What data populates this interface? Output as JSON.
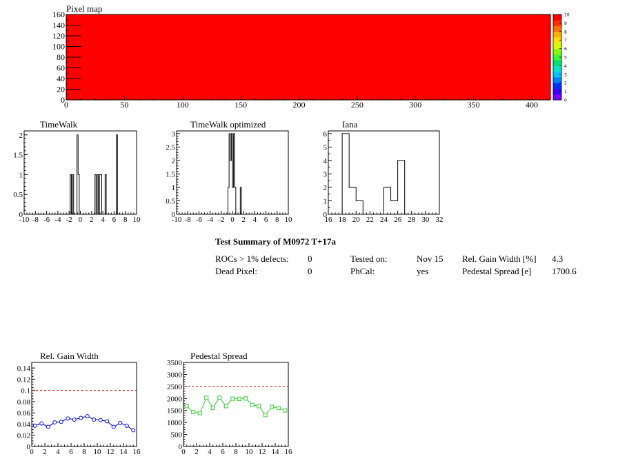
{
  "colors": {
    "map_fill": "#ff0000",
    "gain_line": "#00008b",
    "gain_marker": "#0000ff",
    "pedestal": "#33cc33",
    "limit_line": "#cc0000"
  },
  "chart_data": [
    {
      "id": "pixel_map",
      "type": "heatmap",
      "title": "Pixel map",
      "xlim": [
        0,
        416
      ],
      "ylim": [
        0,
        160
      ],
      "xticks": [
        0,
        50,
        100,
        150,
        200,
        250,
        300,
        350,
        400
      ],
      "yticks": [
        0,
        20,
        40,
        60,
        80,
        100,
        120,
        140,
        160
      ],
      "value": 10,
      "colorbar": {
        "min": 0,
        "max": 10,
        "ticks": [
          0,
          1,
          2,
          3,
          4,
          5,
          6,
          7,
          8,
          9,
          10
        ],
        "colors": [
          "#7f00ff",
          "#3a00ff",
          "#0030ff",
          "#0080ff",
          "#00c8ff",
          "#00e6c8",
          "#00e070",
          "#33ff33",
          "#88ff00",
          "#d8ff00",
          "#ffe000",
          "#ffb000",
          "#ff7000",
          "#ff3000",
          "#ff0000"
        ]
      }
    },
    {
      "id": "timewalk",
      "type": "bar",
      "title": "TimeWalk",
      "xlim": [
        -10,
        10
      ],
      "ylim": [
        0,
        2.1
      ],
      "xticks": [
        -10,
        -8,
        -6,
        -4,
        -2,
        0,
        2,
        4,
        6,
        8,
        10
      ],
      "yticks": [
        0,
        0.5,
        1,
        1.5,
        2
      ],
      "ytick_labels": [
        "0",
        "0.5",
        "1",
        "1.5",
        "2"
      ],
      "bins": [
        [
          -1.8,
          -1.6,
          1
        ],
        [
          -1.4,
          -1.2,
          1
        ],
        [
          -0.6,
          -0.4,
          2
        ],
        [
          -0.4,
          -0.2,
          1
        ],
        [
          2.6,
          2.8,
          1
        ],
        [
          3.0,
          3.2,
          1
        ],
        [
          3.4,
          3.6,
          1
        ],
        [
          3.6,
          3.8,
          1
        ],
        [
          4.4,
          4.6,
          1
        ],
        [
          6.4,
          6.6,
          2
        ]
      ]
    },
    {
      "id": "timewalk_opt",
      "type": "bar",
      "title": "TimeWalk optimized",
      "xlim": [
        -10,
        10
      ],
      "ylim": [
        0,
        3.1
      ],
      "xticks": [
        -10,
        -8,
        -6,
        -4,
        -2,
        0,
        2,
        4,
        6,
        8,
        10
      ],
      "yticks": [
        0,
        0.5,
        1,
        1.5,
        2,
        2.5,
        3
      ],
      "ytick_labels": [
        "0",
        "0.5",
        "1",
        "1.5",
        "2",
        "2.5",
        "3"
      ],
      "bins": [
        [
          -0.8,
          -0.6,
          1
        ],
        [
          -0.6,
          -0.4,
          3
        ],
        [
          -0.4,
          -0.2,
          2
        ],
        [
          -0.2,
          0,
          3
        ],
        [
          0,
          0.2,
          1
        ],
        [
          0.2,
          0.4,
          3
        ],
        [
          0.4,
          0.6,
          1
        ],
        [
          1.4,
          1.6,
          1
        ]
      ]
    },
    {
      "id": "iana",
      "type": "bar",
      "title": "Iana",
      "xlim": [
        16,
        32
      ],
      "ylim": [
        0,
        6.2
      ],
      "xticks": [
        16,
        18,
        20,
        22,
        24,
        26,
        28,
        30,
        32
      ],
      "yticks": [
        0,
        1,
        2,
        3,
        4,
        5,
        6
      ],
      "ytick_labels": [
        "0",
        "1",
        "2",
        "3",
        "4",
        "5",
        "6"
      ],
      "bins": [
        [
          18,
          19,
          6
        ],
        [
          19,
          20,
          2
        ],
        [
          20,
          21,
          1
        ],
        [
          24,
          25,
          2
        ],
        [
          25,
          26,
          1
        ],
        [
          26,
          27,
          4
        ]
      ]
    },
    {
      "id": "gain_width",
      "type": "line",
      "title": "Rel. Gain Width",
      "xlim": [
        0,
        16
      ],
      "ylim": [
        0,
        0.15
      ],
      "xticks": [
        0,
        2,
        4,
        6,
        8,
        10,
        12,
        14,
        16
      ],
      "yticks": [
        0,
        0.02,
        0.04,
        0.06,
        0.08,
        0.1,
        0.12,
        0.14
      ],
      "ytick_labels": [
        "0",
        "0.02",
        "0.04",
        "0.06",
        "0.08",
        "0.1",
        "0.12",
        "0.14"
      ],
      "limit": 0.1,
      "x": [
        0.5,
        1.5,
        2.5,
        3.5,
        4.5,
        5.5,
        6.5,
        7.5,
        8.5,
        9.5,
        10.5,
        11.5,
        12.5,
        13.5,
        14.5,
        15.5
      ],
      "values": [
        0.037,
        0.041,
        0.035,
        0.043,
        0.044,
        0.05,
        0.048,
        0.051,
        0.054,
        0.048,
        0.047,
        0.045,
        0.035,
        0.042,
        0.037,
        0.029
      ]
    },
    {
      "id": "pedestal_spread",
      "type": "line",
      "title": "Pedestal Spread",
      "xlim": [
        0,
        16
      ],
      "ylim": [
        0,
        3500
      ],
      "xticks": [
        0,
        2,
        4,
        6,
        8,
        10,
        12,
        14,
        16
      ],
      "yticks": [
        0,
        500,
        1000,
        1500,
        2000,
        2500,
        3000,
        3500
      ],
      "ytick_labels": [
        "0",
        "500",
        "1000",
        "1500",
        "2000",
        "2500",
        "3000",
        "3500"
      ],
      "limit": 2500,
      "x": [
        0.5,
        1.5,
        2.5,
        3.5,
        4.5,
        5.5,
        6.5,
        7.5,
        8.5,
        9.5,
        10.5,
        11.5,
        12.5,
        13.5,
        14.5,
        15.5
      ],
      "values": [
        1680,
        1430,
        1390,
        2030,
        1610,
        2030,
        1680,
        1990,
        1980,
        2000,
        1730,
        1680,
        1310,
        1650,
        1600,
        1500
      ]
    }
  ],
  "summary": {
    "title": "Test Summary of M0972     T+17a",
    "rows": [
      {
        "l1": "ROCs > 1% defects:",
        "v1": "0",
        "l2": "Tested on:",
        "v2": "Nov 15",
        "l3": "Rel. Gain Width [%]",
        "v3": "4.3"
      },
      {
        "l1": "Dead Pixel:",
        "v1": "0",
        "l2": "PhCal:",
        "v2": "yes",
        "l3": "Pedestal Spread [e]",
        "v3": "1700.6"
      }
    ]
  }
}
